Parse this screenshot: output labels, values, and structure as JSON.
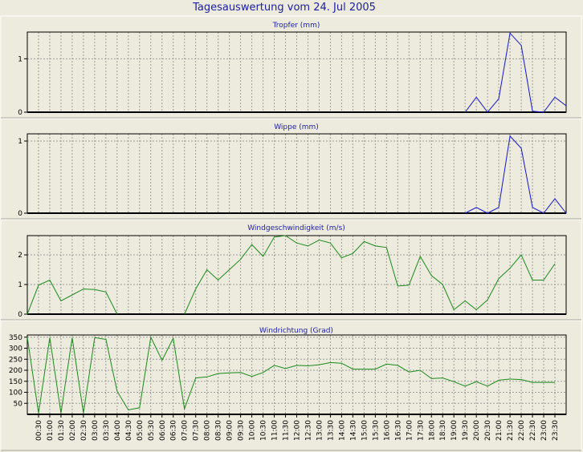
{
  "page": {
    "title": "Tagesauswertung vom 24. Jul 2005"
  },
  "colors": {
    "background": "#ecebdd",
    "plot_background": "#ecebdd",
    "grid": "#9c9c9c",
    "title_text": "#1c1ca8",
    "rain_line": "#1414d2",
    "wind_line": "#1a8a1a",
    "axis": "#000000"
  },
  "time_ticks": [
    "00:30",
    "01:00",
    "01:30",
    "02:00",
    "02:30",
    "03:00",
    "03:30",
    "04:00",
    "04:30",
    "05:00",
    "05:30",
    "06:00",
    "06:30",
    "07:00",
    "07:30",
    "08:00",
    "08:30",
    "09:00",
    "09:30",
    "10:00",
    "10:30",
    "11:00",
    "11:30",
    "12:00",
    "12:30",
    "13:00",
    "13:30",
    "14:00",
    "14:30",
    "15:00",
    "15:30",
    "16:00",
    "16:30",
    "17:00",
    "17:30",
    "18:00",
    "18:30",
    "19:00",
    "19:30",
    "20:00",
    "20:30",
    "21:00",
    "21:30",
    "22:00",
    "22:30",
    "23:00",
    "23:30"
  ],
  "chart_data": [
    {
      "type": "line",
      "title": "Tropfer (mm)",
      "x_unit": "half-hour slots 00:00..23:30",
      "xlim": [
        0,
        47
      ],
      "ylim": [
        0,
        1.5
      ],
      "yticks": [
        0,
        1
      ],
      "color": "#1414d2",
      "grid": true,
      "segments": [
        [
          [
            39,
            0
          ],
          [
            40,
            0.28
          ],
          [
            41,
            0
          ],
          [
            42,
            0.25
          ],
          [
            43,
            1.48
          ],
          [
            44,
            1.25
          ],
          [
            45,
            0.02
          ],
          [
            46,
            0
          ],
          [
            47,
            0.28
          ],
          [
            48,
            0.12
          ]
        ]
      ]
    },
    {
      "type": "line",
      "title": "Wippe (mm)",
      "xlim": [
        0,
        47
      ],
      "ylim": [
        0,
        1.1
      ],
      "yticks": [
        0,
        1
      ],
      "color": "#1414d2",
      "grid": true,
      "segments": [
        [
          [
            39,
            0
          ],
          [
            40,
            0.08
          ],
          [
            41,
            0
          ],
          [
            42,
            0.08
          ],
          [
            43,
            1.07
          ],
          [
            44,
            0.9
          ],
          [
            45,
            0.08
          ],
          [
            46,
            0
          ],
          [
            47,
            0.2
          ],
          [
            48,
            0
          ]
        ]
      ]
    },
    {
      "type": "line",
      "title": "Windgeschwindigkeit (m/s)",
      "xlim": [
        0,
        47
      ],
      "ylim": [
        0,
        2.65
      ],
      "yticks": [
        0,
        1,
        2
      ],
      "color": "#1a8a1a",
      "grid": true,
      "segments": [
        [
          [
            0,
            0
          ],
          [
            1,
            0.98
          ],
          [
            2,
            1.15
          ],
          [
            3,
            0.45
          ],
          [
            4,
            0.65
          ],
          [
            5,
            0.85
          ],
          [
            6,
            0.83
          ],
          [
            7,
            0.75
          ],
          [
            8,
            0
          ]
        ],
        [
          [
            14,
            0
          ],
          [
            15,
            0.85
          ],
          [
            16,
            1.5
          ],
          [
            17,
            1.15
          ],
          [
            18,
            1.5
          ],
          [
            19,
            1.85
          ],
          [
            20,
            2.35
          ],
          [
            21,
            1.95
          ],
          [
            22,
            2.6
          ],
          [
            23,
            2.65
          ],
          [
            24,
            2.4
          ],
          [
            25,
            2.3
          ],
          [
            26,
            2.5
          ],
          [
            27,
            2.4
          ],
          [
            28,
            1.9
          ],
          [
            29,
            2.05
          ],
          [
            30,
            2.45
          ],
          [
            31,
            2.3
          ],
          [
            32,
            2.25
          ],
          [
            33,
            0.95
          ],
          [
            34,
            0.98
          ],
          [
            35,
            1.95
          ],
          [
            36,
            1.3
          ],
          [
            37,
            1.0
          ],
          [
            38,
            0.15
          ],
          [
            39,
            0.45
          ],
          [
            40,
            0.15
          ],
          [
            41,
            0.48
          ],
          [
            42,
            1.2
          ],
          [
            43,
            1.55
          ],
          [
            44,
            2.0
          ],
          [
            45,
            1.15
          ],
          [
            46,
            1.15
          ],
          [
            47,
            1.7
          ]
        ]
      ]
    },
    {
      "type": "line",
      "title": "Windrichtung (Grad)",
      "xlim": [
        0,
        47
      ],
      "ylim": [
        0,
        360
      ],
      "yticks": [
        50,
        100,
        150,
        200,
        250,
        300,
        350
      ],
      "color": "#1a8a1a",
      "grid": true,
      "segments": [
        [
          [
            0,
            350
          ],
          [
            1,
            5
          ],
          [
            2,
            348
          ],
          [
            3,
            5
          ],
          [
            4,
            348
          ],
          [
            5,
            5
          ],
          [
            6,
            348
          ],
          [
            7,
            340
          ],
          [
            8,
            105
          ],
          [
            9,
            20
          ],
          [
            10,
            30
          ],
          [
            11,
            350
          ],
          [
            12,
            245
          ],
          [
            13,
            345
          ],
          [
            14,
            25
          ],
          [
            15,
            165
          ],
          [
            16,
            170
          ],
          [
            17,
            185
          ],
          [
            18,
            188
          ],
          [
            19,
            190
          ],
          [
            20,
            172
          ],
          [
            21,
            190
          ],
          [
            22,
            222
          ],
          [
            23,
            208
          ],
          [
            24,
            222
          ],
          [
            25,
            220
          ],
          [
            26,
            225
          ],
          [
            27,
            235
          ],
          [
            28,
            232
          ],
          [
            29,
            205
          ],
          [
            30,
            205
          ],
          [
            31,
            205
          ],
          [
            32,
            228
          ],
          [
            33,
            222
          ],
          [
            34,
            192
          ],
          [
            35,
            200
          ],
          [
            36,
            162
          ],
          [
            37,
            165
          ],
          [
            38,
            148
          ],
          [
            39,
            128
          ],
          [
            40,
            148
          ],
          [
            41,
            128
          ],
          [
            42,
            155
          ],
          [
            43,
            160
          ],
          [
            44,
            158
          ],
          [
            45,
            145
          ],
          [
            46,
            145
          ],
          [
            47,
            145
          ]
        ]
      ]
    }
  ]
}
